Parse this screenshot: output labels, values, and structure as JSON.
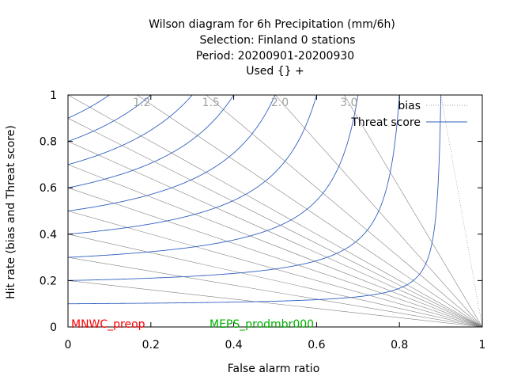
{
  "chart_data": {
    "type": "line",
    "title_lines": [
      "Wilson diagram  for 6h Precipitation (mm/6h)",
      "Selection: Finland      0 stations",
      "Period: 20200901-20200930",
      "Used {} +"
    ],
    "xlabel": "False alarm ratio",
    "ylabel": "Hit rate (bias and Threat score)",
    "xlim": [
      0,
      1
    ],
    "ylim": [
      0,
      1
    ],
    "x_ticks": [
      "0",
      "0.2",
      "0.4",
      "0.6",
      "0.8",
      "1"
    ],
    "y_ticks": [
      "0",
      "0.2",
      "0.4",
      "0.6",
      "0.8",
      "1"
    ],
    "bias_values": [
      0.2,
      0.3,
      0.4,
      0.5,
      0.6,
      0.7,
      0.8,
      0.9,
      1.0,
      1.2,
      1.5,
      2.0,
      3.0,
      10.0
    ],
    "bias_labels": [
      "1.2",
      "1.5",
      "2.0",
      "3.0"
    ],
    "threat_score_values": [
      0.1,
      0.2,
      0.3,
      0.4,
      0.5,
      0.6,
      0.7,
      0.8,
      0.9
    ],
    "legend": [
      {
        "name": "bias",
        "color": "#a0a0a0",
        "style": "dotted"
      },
      {
        "name": "Threat score",
        "color": "#3060c0",
        "style": "solid"
      }
    ],
    "legend_position": "top-right",
    "models": [
      {
        "name": "MNWC_preop",
        "color": "#ff0000"
      },
      {
        "name": "MEPS_prodmbr000",
        "color": "#00b000"
      }
    ],
    "grid": false
  }
}
